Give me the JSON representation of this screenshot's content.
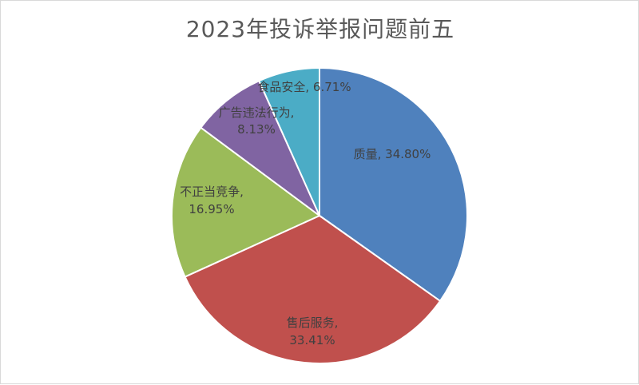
{
  "chart_data": {
    "type": "pie",
    "title": "2023年投诉举报问题前五",
    "slices": [
      {
        "name": "质量",
        "value": 34.8,
        "display": "34.80%",
        "color": "#4F81BD"
      },
      {
        "name": "售后服务",
        "value": 33.41,
        "display": "33.41%",
        "color": "#C0504D"
      },
      {
        "name": "不正当竞争",
        "value": 16.95,
        "display": "16.95%",
        "color": "#9BBB59"
      },
      {
        "name": "广告违法行为",
        "value": 8.13,
        "display": "8.13%",
        "color": "#8064A2"
      },
      {
        "name": "食品安全",
        "value": 6.71,
        "display": "6.71%",
        "color": "#4BACC6"
      }
    ]
  }
}
